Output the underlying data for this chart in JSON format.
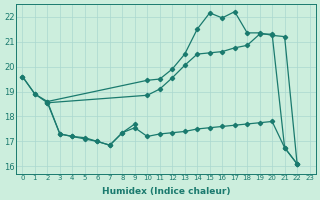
{
  "xlabel": "Humidex (Indice chaleur)",
  "bg_color": "#cceedd",
  "grid_color": "#aad8d0",
  "line_color": "#1a7a6e",
  "xlim": [
    -0.5,
    23.5
  ],
  "ylim": [
    15.7,
    22.5
  ],
  "yticks": [
    16,
    17,
    18,
    19,
    20,
    21,
    22
  ],
  "xticks": [
    0,
    1,
    2,
    3,
    4,
    5,
    6,
    7,
    8,
    9,
    10,
    11,
    12,
    13,
    14,
    15,
    16,
    17,
    18,
    19,
    20,
    21,
    22,
    23
  ],
  "line1_x": [
    0,
    1,
    2,
    10,
    11,
    12,
    13,
    14,
    15,
    16,
    17,
    18,
    19,
    20,
    21,
    22
  ],
  "line1_y": [
    19.6,
    18.9,
    18.6,
    19.45,
    19.5,
    19.9,
    20.5,
    21.5,
    22.15,
    21.95,
    22.2,
    21.35,
    21.35,
    21.25,
    21.2,
    16.1
  ],
  "line2_x": [
    0,
    1,
    2,
    10,
    11,
    12,
    13,
    14,
    15,
    16,
    17,
    18,
    19,
    20,
    21,
    22
  ],
  "line2_y": [
    19.6,
    18.9,
    18.55,
    18.85,
    19.1,
    19.55,
    20.05,
    20.5,
    20.55,
    20.6,
    20.75,
    20.85,
    21.3,
    21.3,
    16.75,
    16.1
  ],
  "line3_x": [
    2,
    3,
    4,
    5,
    6,
    7,
    8,
    9,
    10,
    11,
    12,
    13,
    14,
    15,
    16,
    17,
    18,
    19,
    20,
    21,
    22
  ],
  "line3_y": [
    18.55,
    17.3,
    17.2,
    17.1,
    17.0,
    16.85,
    17.35,
    17.55,
    17.2,
    17.3,
    17.35,
    17.4,
    17.5,
    17.55,
    17.6,
    17.65,
    17.7,
    17.75,
    17.8,
    16.75,
    16.1
  ],
  "line4_x": [
    2,
    3,
    4,
    5,
    6,
    7,
    8,
    9
  ],
  "line4_y": [
    18.6,
    17.3,
    17.2,
    17.15,
    17.0,
    16.85,
    17.35,
    17.7
  ]
}
